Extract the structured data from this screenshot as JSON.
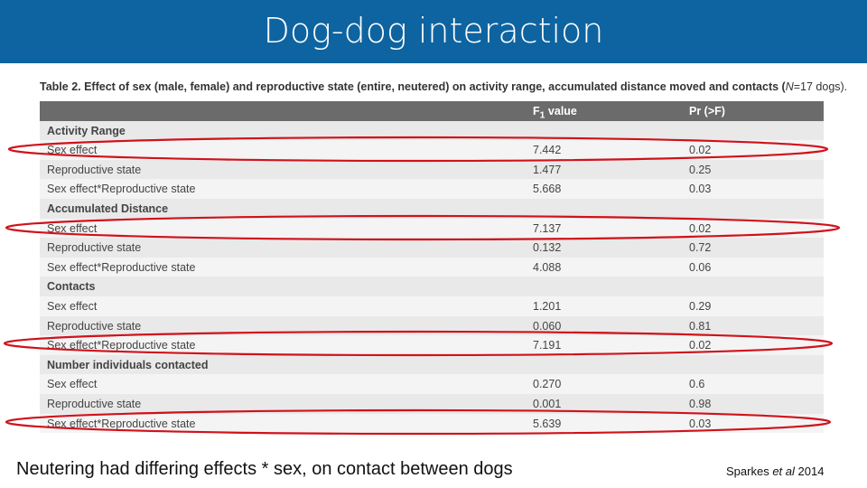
{
  "header": {
    "title": "Dog-dog interaction"
  },
  "table": {
    "caption": [
      "Table 2. Effect of sex (male, female) and reproductive state (entire, neutered) on activity range, accumulated distance moved and contacts (",
      "N",
      "=17 dogs)."
    ],
    "columns": [
      [
        "F",
        "1",
        " value"
      ],
      [
        "Pr (>F)"
      ]
    ],
    "rows": [
      [
        "Activity Range"
      ],
      [
        "Sex effect",
        "7.442",
        "0.02"
      ],
      [
        "Reproductive state",
        "1.477",
        "0.25"
      ],
      [
        "Sex effect*Reproductive state",
        "5.668",
        "0.03"
      ],
      [
        "Accumulated Distance"
      ],
      [
        "Sex effect",
        "7.137",
        "0.02"
      ],
      [
        "Reproductive state",
        "0.132",
        "0.72"
      ],
      [
        "Sex effect*Reproductive state",
        "4.088",
        "0.06"
      ],
      [
        "Contacts"
      ],
      [
        "Sex effect",
        "1.201",
        "0.29"
      ],
      [
        "Reproductive state",
        "0.060",
        "0.81"
      ],
      [
        "Sex effect*Reproductive state",
        "7.191",
        "0.02"
      ],
      [
        "Number individuals contacted"
      ],
      [
        "Sex effect",
        "0.270",
        "0.6"
      ],
      [
        "Reproductive state",
        "0.001",
        "0.98"
      ],
      [
        "Sex effect*Reproductive state",
        "5.639",
        "0.03"
      ]
    ]
  },
  "footer": {
    "note": "Neutering had differing effects * sex, on contact between dogs",
    "citation": [
      "Sparkes ",
      "et al",
      " 2014"
    ]
  }
}
